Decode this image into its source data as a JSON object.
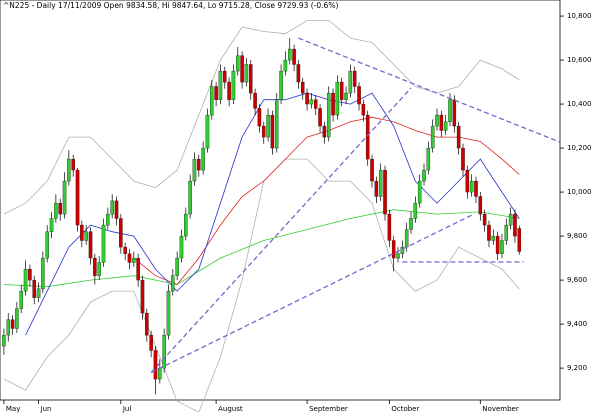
{
  "chart_data": {
    "type": "candlestick",
    "title": "^N225 - Daily 17/11/2009 Open 9834.58, Hi 9847.64, Lo 9715.28, Close 9729.93 (-0.6%)",
    "categories": [
      "May",
      null,
      null,
      null,
      null,
      null,
      null,
      null,
      "Jun",
      null,
      null,
      null,
      null,
      null,
      null,
      null,
      null,
      null,
      null,
      null,
      null,
      null,
      null,
      null,
      null,
      null,
      null,
      "Jul",
      null,
      null,
      null,
      null,
      null,
      null,
      null,
      null,
      null,
      null,
      null,
      null,
      null,
      null,
      null,
      null,
      null,
      null,
      null,
      null,
      null,
      "August",
      null,
      null,
      null,
      null,
      null,
      null,
      null,
      null,
      null,
      null,
      null,
      null,
      null,
      null,
      null,
      null,
      null,
      null,
      null,
      null,
      "September",
      null,
      null,
      null,
      null,
      null,
      null,
      null,
      null,
      null,
      null,
      null,
      null,
      null,
      null,
      null,
      null,
      null,
      null,
      "October",
      null,
      null,
      null,
      null,
      null,
      null,
      null,
      null,
      null,
      null,
      null,
      null,
      null,
      null,
      null,
      null,
      null,
      null,
      null,
      null,
      "November",
      null,
      null,
      null,
      null,
      null,
      null,
      null,
      null,
      null
    ],
    "open": [
      9300,
      9350,
      9420,
      9380,
      9470,
      9550,
      9650,
      9600,
      9520,
      9560,
      9700,
      9820,
      9880,
      9950,
      9900,
      10050,
      10150,
      10100,
      9850,
      9780,
      9820,
      9700,
      9620,
      9680,
      9850,
      9900,
      9960,
      9880,
      9750,
      9720,
      9680,
      9700,
      9600,
      9450,
      9350,
      9280,
      9150,
      9200,
      9350,
      9550,
      9620,
      9700,
      9800,
      9900,
      10050,
      10150,
      10100,
      10200,
      10350,
      10480,
      10420,
      10550,
      10500,
      10420,
      10550,
      10620,
      10500,
      10580,
      10450,
      10380,
      10300,
      10250,
      10350,
      10200,
      10420,
      10550,
      10600,
      10650,
      10580,
      10500,
      10450,
      10400,
      10420,
      10380,
      10300,
      10250,
      10450,
      10350,
      10500,
      10420,
      10450,
      10550,
      10480,
      10400,
      10350,
      10150,
      10050,
      9980,
      10100,
      9900,
      9780,
      9700,
      9720,
      9750,
      9830,
      9880,
      9950,
      10050,
      10100,
      10200,
      10300,
      10350,
      10280,
      10320,
      10420,
      10300,
      10200,
      10100,
      10000,
      10050,
      9980,
      9900,
      9850,
      9780,
      9800,
      9720,
      9780,
      9850,
      9900,
      9834.58
    ],
    "high": [
      9380,
      9450,
      9440,
      9500,
      9580,
      9690,
      9670,
      9620,
      9590,
      9730,
      9850,
      9910,
      9990,
      9970,
      10090,
      10190,
      10170,
      10110,
      9870,
      9850,
      9840,
      9720,
      9710,
      9880,
      9930,
      9990,
      9980,
      9900,
      9770,
      9740,
      9730,
      9720,
      9620,
      9470,
      9370,
      9300,
      9240,
      9380,
      9580,
      9650,
      9730,
      9830,
      9930,
      10080,
      10180,
      10170,
      10230,
      10380,
      10510,
      10500,
      10580,
      10570,
      10520,
      10580,
      10660,
      10640,
      10610,
      10600,
      10470,
      10400,
      10320,
      10380,
      10370,
      10450,
      10580,
      10640,
      10700,
      10670,
      10600,
      10520,
      10470,
      10450,
      10440,
      10400,
      10320,
      10480,
      10470,
      10530,
      10520,
      10480,
      10580,
      10570,
      10500,
      10420,
      10370,
      10170,
      10070,
      10130,
      10120,
      9920,
      9800,
      9750,
      9780,
      9860,
      9910,
      9980,
      10080,
      10130,
      10230,
      10330,
      10380,
      10370,
      10350,
      10450,
      10440,
      10320,
      10220,
      10120,
      10080,
      10070,
      10000,
      9920,
      9870,
      9830,
      9820,
      9810,
      9880,
      9930,
      9920,
      9847.64
    ],
    "low": [
      9260,
      9320,
      9350,
      9360,
      9450,
      9530,
      9570,
      9490,
      9500,
      9540,
      9680,
      9790,
      9860,
      9870,
      9880,
      10030,
      10070,
      9820,
      9750,
      9760,
      9670,
      9580,
      9600,
      9660,
      9830,
      9880,
      9850,
      9720,
      9690,
      9650,
      9660,
      9570,
      9420,
      9320,
      9250,
      9080,
      9130,
      9180,
      9330,
      9530,
      9600,
      9680,
      9780,
      9880,
      10030,
      10070,
      10080,
      10180,
      10330,
      10390,
      10400,
      10470,
      10390,
      10400,
      10530,
      10470,
      10480,
      10420,
      10350,
      10270,
      10220,
      10230,
      10170,
      10180,
      10400,
      10530,
      10580,
      10550,
      10470,
      10420,
      10370,
      10380,
      10350,
      10270,
      10220,
      10230,
      10320,
      10330,
      10390,
      10400,
      10430,
      10450,
      10370,
      10320,
      10120,
      10020,
      9950,
      9960,
      9870,
      9750,
      9640,
      9680,
      9700,
      9730,
      9810,
      9860,
      9930,
      10030,
      10080,
      10180,
      10280,
      10250,
      10260,
      10300,
      10270,
      10170,
      10070,
      9970,
      9980,
      9950,
      9870,
      9820,
      9750,
      9760,
      9690,
      9700,
      9760,
      9830,
      9770,
      9715.28
    ],
    "close": [
      9350,
      9420,
      9380,
      9470,
      9550,
      9650,
      9600,
      9520,
      9560,
      9700,
      9820,
      9880,
      9950,
      9900,
      10050,
      10150,
      10100,
      9850,
      9780,
      9820,
      9700,
      9620,
      9680,
      9850,
      9900,
      9960,
      9880,
      9750,
      9720,
      9680,
      9700,
      9600,
      9450,
      9350,
      9280,
      9150,
      9200,
      9350,
      9550,
      9620,
      9700,
      9800,
      9900,
      10050,
      10150,
      10100,
      10200,
      10350,
      10480,
      10420,
      10550,
      10500,
      10420,
      10550,
      10620,
      10500,
      10580,
      10450,
      10380,
      10300,
      10250,
      10350,
      10200,
      10420,
      10550,
      10600,
      10650,
      10580,
      10500,
      10450,
      10400,
      10420,
      10380,
      10300,
      10250,
      10450,
      10350,
      10500,
      10420,
      10450,
      10550,
      10480,
      10400,
      10350,
      10150,
      10050,
      9980,
      10100,
      9900,
      9780,
      9700,
      9720,
      9750,
      9830,
      9880,
      9950,
      10050,
      10100,
      10200,
      10300,
      10350,
      10280,
      10320,
      10420,
      10300,
      10200,
      10100,
      10000,
      10050,
      9980,
      9900,
      9850,
      9780,
      9800,
      9720,
      9780,
      9850,
      9900,
      9800,
      9729.93
    ],
    "up_color": "#33cc33",
    "down_color": "#cc0000",
    "overlays": [
      {
        "color": "#b0b0b0",
        "x": [
          0,
          5,
          10,
          15,
          20,
          25,
          30,
          35,
          40,
          45,
          50,
          55,
          60,
          65,
          70,
          75,
          80,
          85,
          90,
          95,
          100,
          105,
          110,
          115,
          119
        ],
        "values": [
          9900,
          9950,
          10050,
          10250,
          10250,
          10150,
          10050,
          10020,
          10100,
          10350,
          10600,
          10750,
          10730,
          10720,
          10780,
          10780,
          10700,
          10680,
          10580,
          10480,
          10450,
          10480,
          10600,
          10560,
          10510
        ]
      },
      {
        "color": "#b0b0b0",
        "x": [
          0,
          5,
          10,
          15,
          20,
          25,
          30,
          35,
          40,
          45,
          50,
          55,
          60,
          65,
          70,
          75,
          80,
          85,
          90,
          95,
          100,
          105,
          110,
          115,
          119
        ],
        "values": [
          9150,
          9100,
          9250,
          9350,
          9500,
          9550,
          9550,
          9300,
          9050,
          9000,
          9250,
          9600,
          10050,
          10150,
          10150,
          10050,
          10050,
          9950,
          9650,
          9550,
          9600,
          9750,
          9700,
          9650,
          9560
        ]
      },
      {
        "color": "#33cc33",
        "x": [
          0,
          10,
          20,
          30,
          40,
          50,
          60,
          70,
          80,
          90,
          100,
          110,
          119
        ],
        "values": [
          9580,
          9570,
          9600,
          9620,
          9580,
          9700,
          9780,
          9830,
          9880,
          9920,
          9900,
          9910,
          9880
        ]
      },
      {
        "color": "#dd2222",
        "x": [
          30,
          35,
          40,
          45,
          50,
          55,
          60,
          65,
          70,
          75,
          80,
          85,
          90,
          95,
          100,
          105,
          110,
          115,
          119
        ],
        "values": [
          9700,
          9620,
          9580,
          9700,
          9850,
          9980,
          10050,
          10150,
          10250,
          10280,
          10320,
          10340,
          10320,
          10280,
          10250,
          10250,
          10230,
          10150,
          10080
        ]
      },
      {
        "color": "#2233cc",
        "x": [
          5,
          10,
          15,
          20,
          25,
          30,
          35,
          40,
          45,
          50,
          55,
          60,
          65,
          70,
          75,
          80,
          85,
          90,
          95,
          100,
          105,
          110,
          115,
          119
        ],
        "values": [
          9350,
          9550,
          9750,
          9850,
          9820,
          9800,
          9650,
          9550,
          9650,
          9950,
          10250,
          10420,
          10420,
          10450,
          10420,
          10400,
          10450,
          10300,
          10050,
          9950,
          10050,
          10150,
          10000,
          9880
        ]
      }
    ],
    "trend_lines": {
      "color": "#7766cc",
      "lines": [
        {
          "x": [
            34,
            108
          ],
          "values": [
            9180,
            9895
          ]
        },
        {
          "x": [
            34,
            94
          ],
          "values": [
            9180,
            10473
          ]
        },
        {
          "x": [
            68,
            128.4
          ],
          "values": [
            10700,
            10227
          ]
        },
        {
          "x": [
            92,
            120
          ],
          "values": [
            9682,
            9682
          ]
        }
      ]
    },
    "xlim": [
      -0.9,
      128.4
    ],
    "ylim": [
      9055,
      10873
    ],
    "yticks": [
      {
        "value": 9200,
        "label": "9,200"
      },
      {
        "value": 9400,
        "label": "9,400"
      },
      {
        "value": 9600,
        "label": "9,600"
      },
      {
        "value": 9800,
        "label": "9,800"
      },
      {
        "value": 10000,
        "label": "10,000"
      },
      {
        "value": 10200,
        "label": "10,200"
      },
      {
        "value": 10400,
        "label": "10,400"
      },
      {
        "value": 10600,
        "label": "10,600"
      },
      {
        "value": 10800,
        "label": "10,800"
      }
    ]
  }
}
